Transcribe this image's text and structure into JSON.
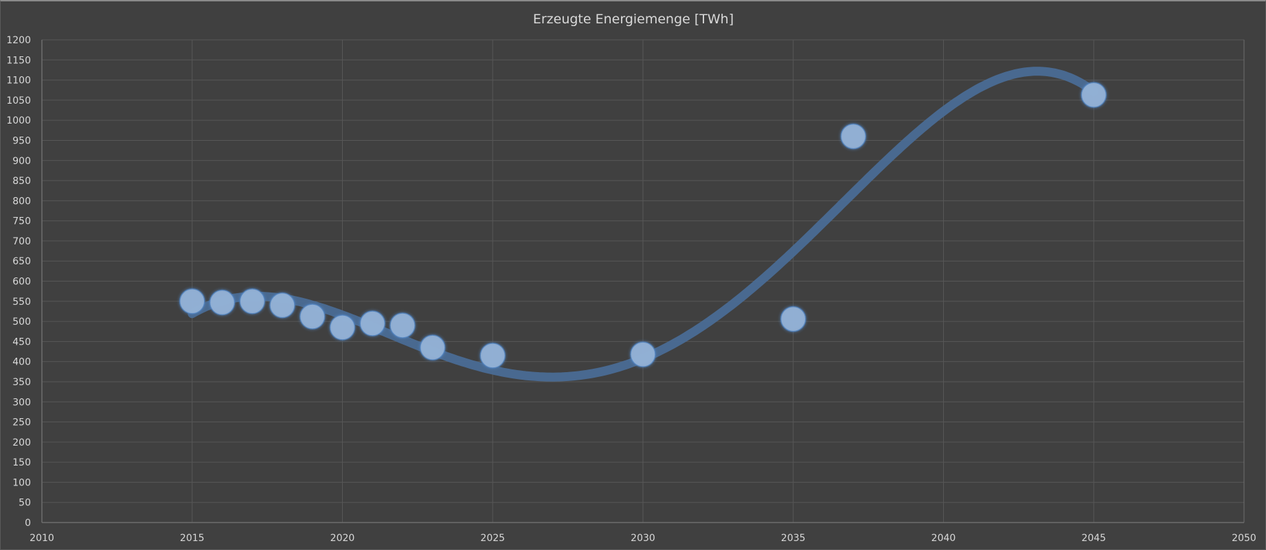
{
  "chart_data": {
    "type": "scatter",
    "title": "Erzeugte Energiemenge [TWh]",
    "xlabel": "",
    "ylabel": "",
    "xlim": [
      2010,
      2050
    ],
    "ylim": [
      0,
      1200
    ],
    "x_ticks": [
      2010,
      2015,
      2020,
      2025,
      2030,
      2035,
      2040,
      2045,
      2050
    ],
    "y_ticks": [
      0,
      50,
      100,
      150,
      200,
      250,
      300,
      350,
      400,
      450,
      500,
      550,
      600,
      650,
      700,
      750,
      800,
      850,
      900,
      950,
      1000,
      1050,
      1100,
      1150,
      1200
    ],
    "grid": true,
    "legend": "none",
    "series": [
      {
        "name": "Erzeugte Energiemenge",
        "x": [
          2015,
          2016,
          2017,
          2018,
          2019,
          2020,
          2021,
          2022,
          2023,
          2025,
          2030,
          2035,
          2037,
          2045
        ],
        "y": [
          550,
          547,
          550,
          540,
          512,
          485,
          495,
          490,
          435,
          415,
          418,
          506,
          960,
          1063
        ]
      }
    ],
    "trendline": {
      "type": "polynomial",
      "order": 4,
      "x_range": [
        2015,
        2045
      ]
    },
    "colors": {
      "background": "#404040",
      "grid": "#575757",
      "axis": "#6e6e6e",
      "text": "#d9d9d9",
      "marker_fill": "#95b3d7",
      "marker_stroke": "#4f81bd",
      "trendline": "#4a6c95"
    }
  }
}
